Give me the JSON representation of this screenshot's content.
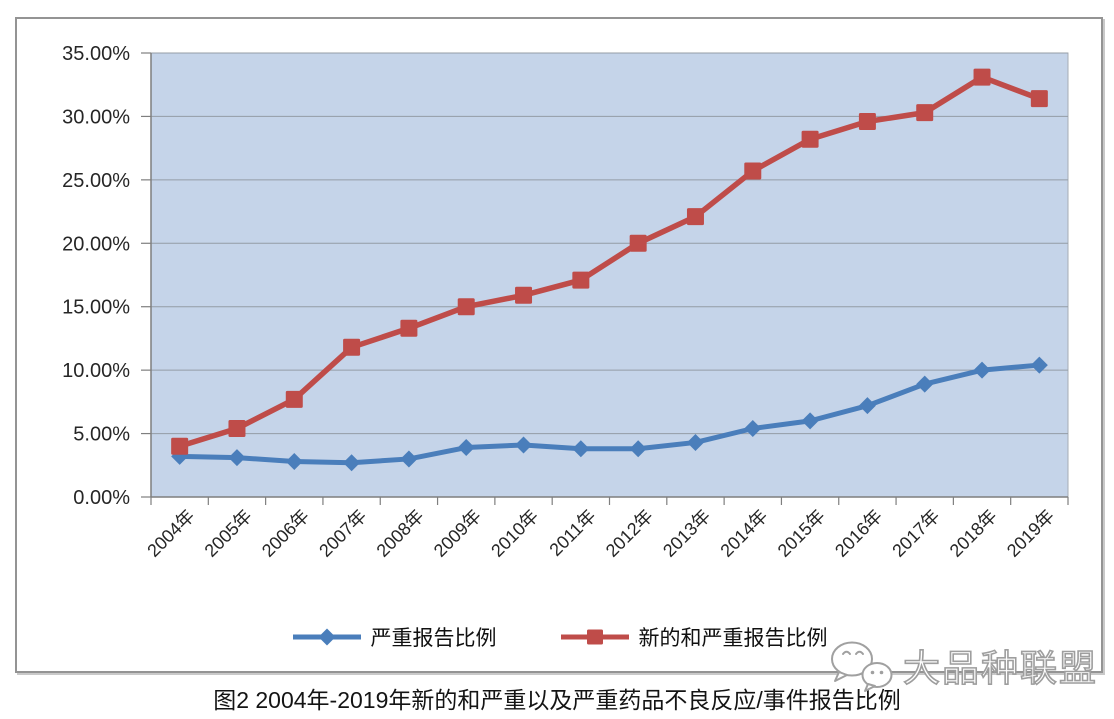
{
  "chart_data": {
    "type": "line",
    "title": "图2 2004年-2019年新的和严重以及严重药品不良反应/事件报告比例",
    "categories": [
      "2004年",
      "2005年",
      "2006年",
      "2007年",
      "2008年",
      "2009年",
      "2010年",
      "2011年",
      "2012年",
      "2013年",
      "2014年",
      "2015年",
      "2016年",
      "2017年",
      "2018年",
      "2019年"
    ],
    "series": [
      {
        "name": "严重报告比例",
        "marker": "diamond",
        "color": "#4a7ebb",
        "values": [
          3.2,
          3.1,
          2.8,
          2.7,
          3.0,
          3.9,
          4.1,
          3.8,
          3.8,
          4.3,
          5.4,
          6.0,
          7.2,
          8.9,
          10.0,
          10.4
        ]
      },
      {
        "name": "新的和严重报告比例",
        "marker": "square",
        "color": "#bf4c49",
        "values": [
          4.0,
          5.4,
          7.7,
          11.8,
          13.3,
          15.0,
          15.9,
          17.1,
          20.0,
          22.1,
          25.7,
          28.2,
          29.6,
          30.3,
          33.1,
          31.4
        ]
      }
    ],
    "ylim": [
      0,
      35
    ],
    "ytick_step": 5,
    "ytick_labels": [
      "0.00%",
      "5.00%",
      "10.00%",
      "15.00%",
      "20.00%",
      "25.00%",
      "30.00%",
      "35.00%"
    ],
    "grid": "horizontal",
    "legend_position": "bottom",
    "plot_bg": "#c5d4e9",
    "gridline_color": "#949ca6",
    "axis_color": "#7f7f7f"
  },
  "caption": {
    "text": "图2 2004年-2019年新的和严重以及严重药品不良反应/事件报告比例"
  },
  "watermark": {
    "text": "大品种联盟",
    "icon": "wechat-bubbles-icon"
  }
}
